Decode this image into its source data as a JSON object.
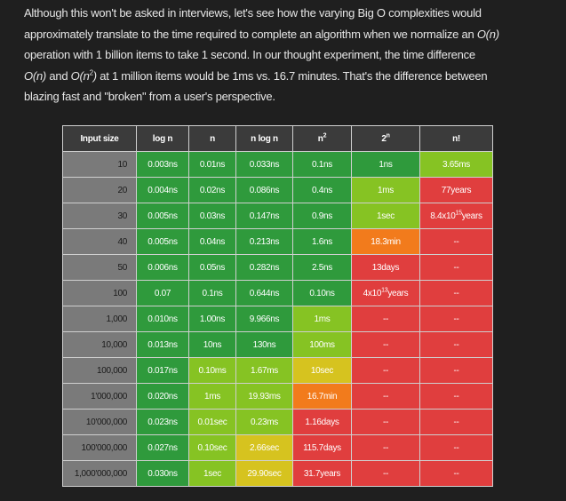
{
  "paragraph": {
    "lines": [
      [
        {
          "text": "Although this won't be asked in interviews, let's see how the varying Big O complexities would"
        }
      ],
      [
        {
          "text": "approximately translate to the time required to complete an algorithm when we normalize an "
        },
        {
          "text": "O(n)",
          "style": "italic"
        }
      ],
      [
        {
          "text": "operation with 1 billion items to take 1 second. In our thought experiment, the time difference"
        }
      ],
      [
        {
          "text": "O(n)",
          "style": "italic"
        },
        {
          "text": " and "
        },
        {
          "text": "O(n",
          "style": "italic"
        },
        {
          "text": "2",
          "style": "sup"
        },
        {
          "text": ")",
          "style": "italic"
        },
        {
          "text": " at 1 million items would be 1ms vs. 16.7 minutes. That's the difference between"
        }
      ],
      [
        {
          "text": "blazing fast and \"broken\" from a user's perspective."
        }
      ]
    ]
  },
  "table": {
    "widths": [
      82,
      58,
      52,
      63,
      65,
      76,
      81
    ],
    "header": [
      {
        "text": "Input size"
      },
      {
        "text": "log n"
      },
      {
        "text": "n"
      },
      {
        "text": "n log n"
      },
      {
        "text": "n",
        "sup": "2"
      },
      {
        "text": "2",
        "sup": "n"
      },
      {
        "text": "n!"
      }
    ],
    "rows": [
      [
        {
          "text": "10",
          "color": "#7a7a7a"
        },
        {
          "text": "0.003ns",
          "color": "#2f9a3c"
        },
        {
          "text": "0.01ns",
          "color": "#2f9a3c"
        },
        {
          "text": "0.033ns",
          "color": "#2f9a3c"
        },
        {
          "text": "0.1ns",
          "color": "#2f9a3c"
        },
        {
          "text": "1ns",
          "color": "#2f9a3c"
        },
        {
          "text": "3.65ms",
          "color": "#86c323"
        }
      ],
      [
        {
          "text": "20",
          "color": "#7a7a7a"
        },
        {
          "text": "0.004ns",
          "color": "#2f9a3c"
        },
        {
          "text": "0.02ns",
          "color": "#2f9a3c"
        },
        {
          "text": "0.086ns",
          "color": "#2f9a3c"
        },
        {
          "text": "0.4ns",
          "color": "#2f9a3c"
        },
        {
          "text": "1ms",
          "color": "#86c323"
        },
        {
          "text": "77years",
          "color": "#e03e3e"
        }
      ],
      [
        {
          "text": "30",
          "color": "#7a7a7a"
        },
        {
          "text": "0.005ns",
          "color": "#2f9a3c"
        },
        {
          "text": "0.03ns",
          "color": "#2f9a3c"
        },
        {
          "text": "0.147ns",
          "color": "#2f9a3c"
        },
        {
          "text": "0.9ns",
          "color": "#2f9a3c"
        },
        {
          "text": "1sec",
          "color": "#86c323"
        },
        {
          "text": "8.4x10",
          "sup": "15",
          "after": "years",
          "color": "#e03e3e"
        }
      ],
      [
        {
          "text": "40",
          "color": "#7a7a7a"
        },
        {
          "text": "0.005ns",
          "color": "#2f9a3c"
        },
        {
          "text": "0.04ns",
          "color": "#2f9a3c"
        },
        {
          "text": "0.213ns",
          "color": "#2f9a3c"
        },
        {
          "text": "1.6ns",
          "color": "#2f9a3c"
        },
        {
          "text": "18.3min",
          "color": "#f27b1c"
        },
        {
          "text": "--",
          "color": "#e03e3e"
        }
      ],
      [
        {
          "text": "50",
          "color": "#7a7a7a"
        },
        {
          "text": "0.006ns",
          "color": "#2f9a3c"
        },
        {
          "text": "0.05ns",
          "color": "#2f9a3c"
        },
        {
          "text": "0.282ns",
          "color": "#2f9a3c"
        },
        {
          "text": "2.5ns",
          "color": "#2f9a3c"
        },
        {
          "text": "13days",
          "color": "#e03e3e"
        },
        {
          "text": "--",
          "color": "#e03e3e"
        }
      ],
      [
        {
          "text": "100",
          "color": "#7a7a7a"
        },
        {
          "text": "0.07",
          "color": "#2f9a3c"
        },
        {
          "text": "0.1ns",
          "color": "#2f9a3c"
        },
        {
          "text": "0.644ns",
          "color": "#2f9a3c"
        },
        {
          "text": "0.10ns",
          "color": "#2f9a3c"
        },
        {
          "text": "4x10",
          "sup": "13",
          "after": "years",
          "color": "#e03e3e"
        },
        {
          "text": "--",
          "color": "#e03e3e"
        }
      ],
      [
        {
          "text": "1,000",
          "color": "#7a7a7a"
        },
        {
          "text": "0.010ns",
          "color": "#2f9a3c"
        },
        {
          "text": "1.00ns",
          "color": "#2f9a3c"
        },
        {
          "text": "9.966ns",
          "color": "#2f9a3c"
        },
        {
          "text": "1ms",
          "color": "#86c323"
        },
        {
          "text": "--",
          "color": "#e03e3e"
        },
        {
          "text": "--",
          "color": "#e03e3e"
        }
      ],
      [
        {
          "text": "10,000",
          "color": "#7a7a7a"
        },
        {
          "text": "0.013ns",
          "color": "#2f9a3c"
        },
        {
          "text": "10ns",
          "color": "#2f9a3c"
        },
        {
          "text": "130ns",
          "color": "#2f9a3c"
        },
        {
          "text": "100ms",
          "color": "#86c323"
        },
        {
          "text": "--",
          "color": "#e03e3e"
        },
        {
          "text": "--",
          "color": "#e03e3e"
        }
      ],
      [
        {
          "text": "100,000",
          "color": "#7a7a7a"
        },
        {
          "text": "0.017ns",
          "color": "#2f9a3c"
        },
        {
          "text": "0.10ms",
          "color": "#86c323"
        },
        {
          "text": "1.67ms",
          "color": "#86c323"
        },
        {
          "text": "10sec",
          "color": "#d6c31f"
        },
        {
          "text": "--",
          "color": "#e03e3e"
        },
        {
          "text": "--",
          "color": "#e03e3e"
        }
      ],
      [
        {
          "text": "1'000,000",
          "color": "#7a7a7a"
        },
        {
          "text": "0.020ns",
          "color": "#2f9a3c"
        },
        {
          "text": "1ms",
          "color": "#86c323"
        },
        {
          "text": "19.93ms",
          "color": "#86c323"
        },
        {
          "text": "16.7min",
          "color": "#f27b1c"
        },
        {
          "text": "--",
          "color": "#e03e3e"
        },
        {
          "text": "--",
          "color": "#e03e3e"
        }
      ],
      [
        {
          "text": "10'000,000",
          "color": "#7a7a7a"
        },
        {
          "text": "0.023ns",
          "color": "#2f9a3c"
        },
        {
          "text": "0.01sec",
          "color": "#86c323"
        },
        {
          "text": "0.23ms",
          "color": "#86c323"
        },
        {
          "text": "1.16days",
          "color": "#e03e3e"
        },
        {
          "text": "--",
          "color": "#e03e3e"
        },
        {
          "text": "--",
          "color": "#e03e3e"
        }
      ],
      [
        {
          "text": "100'000,000",
          "color": "#7a7a7a"
        },
        {
          "text": "0.027ns",
          "color": "#2f9a3c"
        },
        {
          "text": "0.10sec",
          "color": "#86c323"
        },
        {
          "text": "2.66sec",
          "color": "#d6c31f"
        },
        {
          "text": "115.7days",
          "color": "#e03e3e"
        },
        {
          "text": "--",
          "color": "#e03e3e"
        },
        {
          "text": "--",
          "color": "#e03e3e"
        }
      ],
      [
        {
          "text": "1,000'000,000",
          "color": "#7a7a7a"
        },
        {
          "text": "0.030ns",
          "color": "#2f9a3c"
        },
        {
          "text": "1sec",
          "color": "#86c323"
        },
        {
          "text": "29.90sec",
          "color": "#d6c31f"
        },
        {
          "text": "31.7years",
          "color": "#e03e3e"
        },
        {
          "text": "--",
          "color": "#e03e3e"
        },
        {
          "text": "--",
          "color": "#e03e3e"
        }
      ]
    ]
  }
}
